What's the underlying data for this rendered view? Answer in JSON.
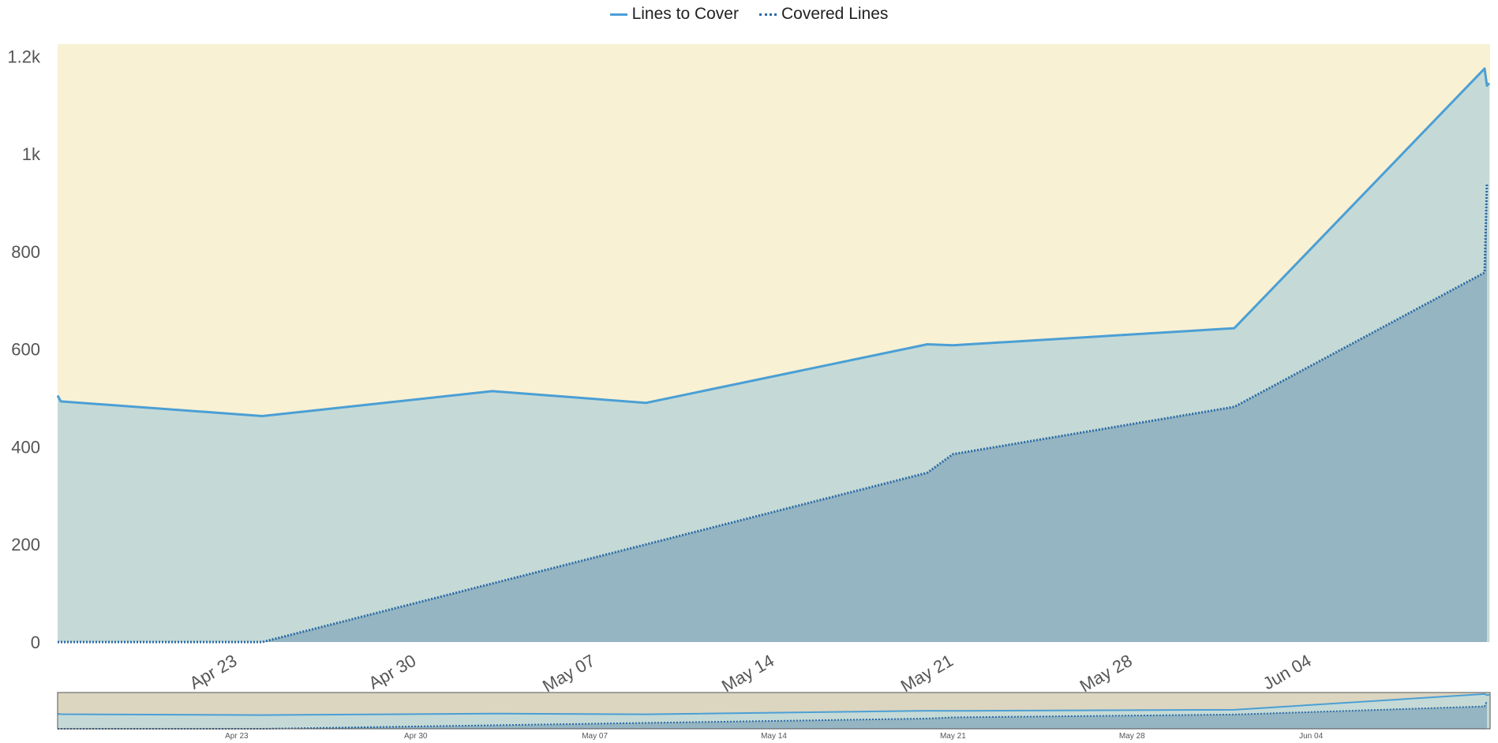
{
  "legend": {
    "series1": "Lines to Cover",
    "series2": "Covered Lines"
  },
  "colors": {
    "plot_background": "#f9f1d4",
    "lines_to_cover_fill": "#c5dad6",
    "covered_lines_fill": "#94b5c1",
    "lines_to_cover_stroke": "#4b9fd5",
    "covered_lines_stroke": "#2b6aa8",
    "navigator_background": "#dcd5c0"
  },
  "chart_data": {
    "type": "area",
    "title": "",
    "xlabel": "",
    "ylabel": "",
    "x_range": [
      "2019-04-16",
      "2019-06-11"
    ],
    "ylim": [
      0,
      1225
    ],
    "y_ticks": [
      {
        "value": 0,
        "label": "0"
      },
      {
        "value": 200,
        "label": "200"
      },
      {
        "value": 400,
        "label": "400"
      },
      {
        "value": 600,
        "label": "600"
      },
      {
        "value": 800,
        "label": "800"
      },
      {
        "value": 1000,
        "label": "1k"
      },
      {
        "value": 1200,
        "label": "1.2k"
      }
    ],
    "x_ticks": [
      {
        "date": "2019-04-23",
        "label": "Apr 23"
      },
      {
        "date": "2019-04-30",
        "label": "Apr 30"
      },
      {
        "date": "2019-05-07",
        "label": "May 07"
      },
      {
        "date": "2019-05-14",
        "label": "May 14"
      },
      {
        "date": "2019-05-21",
        "label": "May 21"
      },
      {
        "date": "2019-05-28",
        "label": "May 28"
      },
      {
        "date": "2019-06-04",
        "label": "Jun 04"
      }
    ],
    "series": [
      {
        "name": "Lines to Cover",
        "style": "solid",
        "points": [
          [
            "2019-04-16",
            505
          ],
          [
            "2019-04-16",
            493
          ],
          [
            "2019-04-24",
            463
          ],
          [
            "2019-05-03",
            514
          ],
          [
            "2019-05-09",
            490
          ],
          [
            "2019-05-20",
            610
          ],
          [
            "2019-05-21",
            608
          ],
          [
            "2019-06-01",
            643
          ],
          [
            "2019-06-11",
            1175
          ],
          [
            "2019-06-11",
            1140
          ],
          [
            "2019-06-11",
            1145
          ]
        ]
      },
      {
        "name": "Covered Lines",
        "style": "dotted",
        "points": [
          [
            "2019-04-16",
            0
          ],
          [
            "2019-04-24",
            0
          ],
          [
            "2019-05-03",
            120
          ],
          [
            "2019-05-09",
            200
          ],
          [
            "2019-05-20",
            347
          ],
          [
            "2019-05-21",
            385
          ],
          [
            "2019-06-01",
            482
          ],
          [
            "2019-06-11",
            757
          ],
          [
            "2019-06-11",
            940
          ]
        ]
      }
    ],
    "grid": false,
    "legend_position": "top-center",
    "navigator": true
  }
}
